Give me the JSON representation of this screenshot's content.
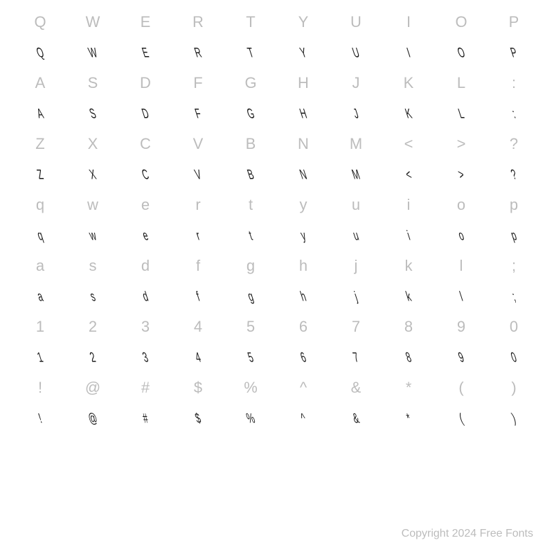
{
  "grid": {
    "rows": [
      {
        "ref": [
          "Q",
          "W",
          "E",
          "R",
          "T",
          "Y",
          "U",
          "I",
          "O",
          "P"
        ],
        "sample": [
          "Q",
          "W",
          "E",
          "R",
          "T",
          "Y",
          "U",
          "I",
          "O",
          "P"
        ]
      },
      {
        "ref": [
          "A",
          "S",
          "D",
          "F",
          "G",
          "H",
          "J",
          "K",
          "L",
          ":"
        ],
        "sample": [
          "A",
          "S",
          "D",
          "F",
          "G",
          "H",
          "J",
          "K",
          "L",
          ":"
        ]
      },
      {
        "ref": [
          "Z",
          "X",
          "C",
          "V",
          "B",
          "N",
          "M",
          "<",
          ">",
          "?"
        ],
        "sample": [
          "Z",
          "X",
          "C",
          "V",
          "B",
          "N",
          "M",
          "<",
          ">",
          "?"
        ]
      },
      {
        "ref": [
          "q",
          "w",
          "e",
          "r",
          "t",
          "y",
          "u",
          "i",
          "o",
          "p"
        ],
        "sample": [
          "q",
          "w",
          "e",
          "r",
          "t",
          "y",
          "u",
          "i",
          "o",
          "p"
        ]
      },
      {
        "ref": [
          "a",
          "s",
          "d",
          "f",
          "g",
          "h",
          "j",
          "k",
          "l",
          ";"
        ],
        "sample": [
          "a",
          "s",
          "d",
          "f",
          "g",
          "h",
          "j",
          "k",
          "l",
          ";"
        ]
      },
      {
        "ref": [
          "1",
          "2",
          "3",
          "4",
          "5",
          "6",
          "7",
          "8",
          "9",
          "0"
        ],
        "sample": [
          "1",
          "2",
          "3",
          "4",
          "5",
          "6",
          "7",
          "8",
          "9",
          "0"
        ]
      },
      {
        "ref": [
          "!",
          "@",
          "#",
          "$",
          "%",
          "^",
          "&",
          "*",
          "(",
          ")"
        ],
        "sample": [
          "!",
          "@",
          "#",
          "$",
          "%",
          "^",
          "&",
          "*",
          "(",
          ")"
        ]
      }
    ],
    "ref_color": "#bcbcbc",
    "sample_color": "#1a1a1a",
    "ref_fontsize": 22,
    "sample_fontsize": 22,
    "columns": 10,
    "background_color": "#ffffff"
  },
  "footer": {
    "text": "Copyright 2024 Free Fonts",
    "color": "#bcbcbc",
    "fontsize": 16
  }
}
